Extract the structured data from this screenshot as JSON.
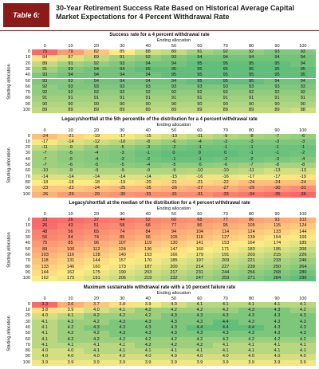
{
  "header": {
    "label": "Table 6:",
    "title": "30-Year Retirement Success Rate Based on Historical Average Capital Market Expectations for 4 Percent Withdrawal Rate"
  },
  "axes": {
    "ending": "Ending allocation",
    "starting": "Starting allocation",
    "levels": [
      0,
      10,
      20,
      30,
      40,
      50,
      60,
      70,
      80,
      90,
      100
    ]
  },
  "tables": [
    {
      "title": "Success rate for a 4 percent withdrawal rate",
      "rows": [
        [
          75,
          79,
          82,
          85,
          88,
          89,
          91,
          92,
          92,
          93,
          93
        ],
        [
          84,
          87,
          89,
          91,
          92,
          93,
          94,
          94,
          94,
          94,
          94
        ],
        [
          89,
          91,
          92,
          93,
          94,
          94,
          95,
          95,
          95,
          95,
          94
        ],
        [
          91,
          93,
          94,
          94,
          95,
          95,
          95,
          95,
          95,
          95,
          95
        ],
        [
          93,
          94,
          94,
          94,
          94,
          95,
          95,
          95,
          95,
          95,
          95
        ],
        [
          93,
          93,
          94,
          94,
          94,
          94,
          95,
          95,
          95,
          94,
          94
        ],
        [
          92,
          93,
          93,
          93,
          93,
          93,
          93,
          93,
          93,
          93,
          93
        ],
        [
          92,
          92,
          92,
          92,
          92,
          92,
          92,
          92,
          92,
          92,
          92
        ],
        [
          91,
          91,
          91,
          91,
          91,
          91,
          91,
          91,
          91,
          91,
          91
        ],
        [
          90,
          90,
          90,
          90,
          90,
          90,
          90,
          90,
          90,
          90,
          90
        ],
        [
          89,
          89,
          89,
          89,
          89,
          89,
          89,
          89,
          89,
          89,
          88
        ]
      ]
    },
    {
      "title": "Legacy/shortfall at the 5th percentile of the distribution for a 4 percent withdrawal rate",
      "rows": [
        [
          -24,
          -21,
          -19,
          -17,
          -15,
          -13,
          -11,
          -9,
          -8,
          -7,
          -6
        ],
        [
          -17,
          -14,
          -12,
          -10,
          -8,
          -6,
          -4,
          -3,
          -3,
          -3,
          -3
        ],
        [
          -11,
          -9,
          -6,
          -5,
          -3,
          -2,
          -1,
          -1,
          -1,
          -1,
          -1
        ],
        [
          -7,
          -5,
          -4,
          -3,
          -1,
          0,
          0,
          0,
          -1,
          -1,
          -2
        ],
        [
          -7,
          -5,
          -4,
          -3,
          -2,
          -1,
          -1,
          -2,
          -2,
          -3,
          -4
        ],
        [
          -7,
          -6,
          -5,
          -5,
          -4,
          -5,
          -5,
          -6,
          -7,
          -8,
          -8
        ],
        [
          -10,
          -9,
          -9,
          -9,
          -9,
          -9,
          -10,
          -10,
          -11,
          -13,
          -13
        ],
        [
          -14,
          -14,
          -14,
          -14,
          -14,
          -15,
          -16,
          -16,
          -17,
          -17,
          -19
        ],
        [
          -18,
          -18,
          -18,
          -19,
          -20,
          -21,
          -21,
          -22,
          -24,
          -24,
          -24
        ],
        [
          -23,
          -23,
          -24,
          -25,
          -25,
          -26,
          -27,
          -27,
          -29,
          -30,
          -31
        ],
        [
          -26,
          -29,
          -29,
          -30,
          -31,
          -31,
          -31,
          -33,
          -34,
          -35,
          -36
        ]
      ]
    },
    {
      "title": "Legacy/shortfall at the median of the distribution for a 4 percent withdrawal rate",
      "rows": [
        [
          23,
          26,
          37,
          44,
          52,
          60,
          68,
          77,
          86,
          93,
          102
        ],
        [
          26,
          43,
          51,
          58,
          68,
          77,
          86,
          95,
          105,
          115,
          124
        ],
        [
          48,
          56,
          65,
          74,
          84,
          94,
          104,
          114,
          124,
          133,
          144
        ],
        [
          56,
          64,
          74,
          85,
          96,
          105,
          116,
          127,
          139,
          154,
          166
        ],
        [
          75,
          85,
          96,
          107,
          119,
          130,
          141,
          153,
          164,
          174,
          185
        ],
        [
          89,
          100,
          112,
          124,
          136,
          147,
          160,
          171,
          183,
          195,
          206
        ],
        [
          103,
          116,
          128,
          140,
          153,
          166,
          179,
          191,
          203,
          215,
          226
        ],
        [
          118,
          131,
          144,
          157,
          170,
          185,
          197,
          209,
          221,
          233,
          246
        ],
        [
          133,
          146,
          160,
          173,
          187,
          200,
          214,
          227,
          239,
          250,
          264
        ],
        [
          144,
          162,
          175,
          190,
          203,
          217,
          231,
          244,
          256,
          268,
          280
        ],
        [
          162,
          175,
          191,
          206,
          219,
          232,
          247,
          259,
          271,
          284,
          296
        ]
      ]
    },
    {
      "title": "Maximum sustainable withdrawal rate with a 10 percent failure rate",
      "rows": [
        [
          "3.3",
          "3.6",
          "3.7",
          "3.8",
          "3.9",
          "4.0",
          "4.1",
          "4.1",
          "4.1",
          "4.1",
          "4.1"
        ],
        [
          "3.8",
          "3.9",
          "4.0",
          "4.1",
          "4.2",
          "4.2",
          "4.2",
          "4.2",
          "4.3",
          "4.3",
          "4.2"
        ],
        [
          "4.0",
          "4.1",
          "4.2",
          "4.2",
          "4.2",
          "4.3",
          "4.3",
          "4.3",
          "4.3",
          "4.3",
          "4.3"
        ],
        [
          "4.1",
          "4.2",
          "4.2",
          "4.3",
          "4.3",
          "4.3",
          "4.3",
          "4.4",
          "4.3",
          "4.3",
          "4.3"
        ],
        [
          "4.1",
          "4.2",
          "4.3",
          "4.3",
          "4.3",
          "4.3",
          "4.4",
          "4.4",
          "4.4",
          "4.3",
          "4.3"
        ],
        [
          "4.1",
          "4.2",
          "4.2",
          "4.3",
          "4.3",
          "4.3",
          "4.3",
          "4.3",
          "4.3",
          "4.3",
          "4.3"
        ],
        [
          "4.1",
          "4.2",
          "4.2",
          "4.2",
          "4.2",
          "4.2",
          "4.2",
          "4.2",
          "4.2",
          "4.2",
          "4.2"
        ],
        [
          "4.1",
          "4.1",
          "4.1",
          "4.1",
          "4.2",
          "4.2",
          "4.2",
          "4.1",
          "4.1",
          "4.1",
          "4.1"
        ],
        [
          "4.0",
          "4.0",
          "4.1",
          "4.1",
          "4.1",
          "4.1",
          "4.1",
          "4.1",
          "4.1",
          "4.1",
          "4.1"
        ],
        [
          "4.0",
          "4.0",
          "4.0",
          "4.0",
          "4.0",
          "4.0",
          "4.0",
          "4.0",
          "4.0",
          "4.0",
          "4.0"
        ],
        [
          "3.9",
          "3.9",
          "3.9",
          "3.9",
          "3.9",
          "3.9",
          "3.9",
          "3.9",
          "3.9",
          "3.9",
          "3.9"
        ]
      ]
    }
  ]
}
